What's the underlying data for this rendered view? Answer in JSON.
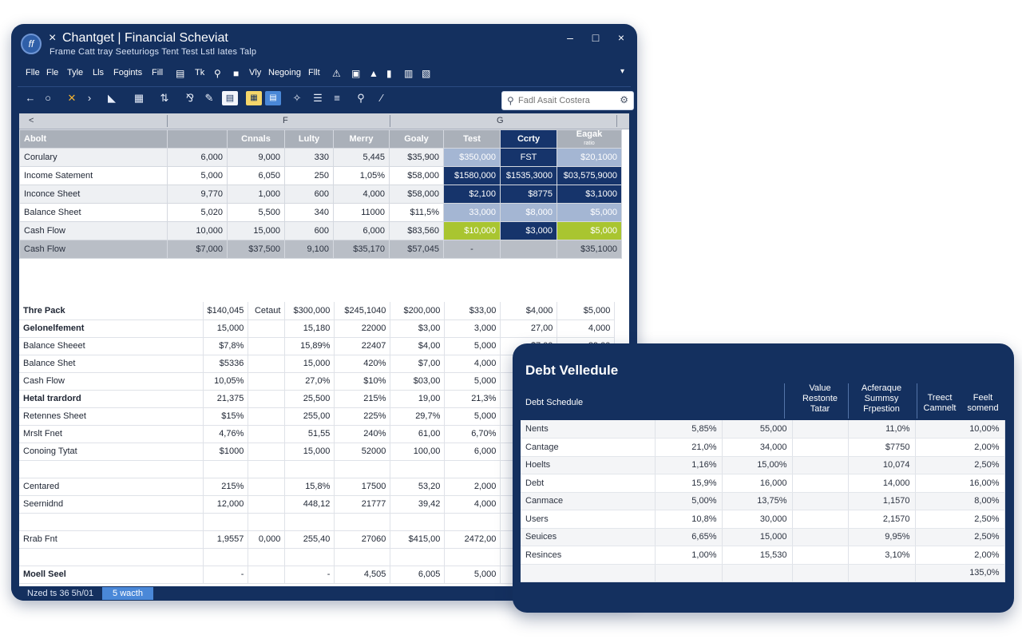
{
  "window": {
    "title": "Chantget | Financial Scheviat",
    "subtitle": "Frame Catt tray  Seeturiogs  Tent  Test  Lstl  Iates  Talp",
    "close_tab_icon": "×",
    "minimize_glyph": "–",
    "maximize_glyph": "□",
    "close_glyph": "×"
  },
  "menu": {
    "items": [
      "Flle",
      "Fle",
      "Tyle",
      "Lls",
      "Fogints",
      "Fill",
      "Tk",
      "Vly",
      "Negoing",
      "Fllt"
    ]
  },
  "toolbar": {
    "icons": [
      "back-arrow-icon",
      "refresh-icon",
      "cut-icon",
      "forward-icon",
      "paint-icon",
      "grid-icon",
      "sort-icon",
      "filter-icon",
      "pencil-icon",
      "note-icon",
      "image-icon",
      "chart-icon",
      "magic-icon",
      "list-icon",
      "lines-icon",
      "pin-icon",
      "wand-icon"
    ]
  },
  "search": {
    "placeholder": "Fadl Asait Costera"
  },
  "colheader": {
    "left": "<",
    "mid": "F",
    "right": "G"
  },
  "grid": {
    "headers": [
      "Abolt",
      "",
      "Cnnals",
      "Lulty",
      "Merry",
      "Goaly",
      "Test",
      "Ccrty",
      "Eagak"
    ],
    "header_sub": "ratio",
    "rows": [
      [
        "Corulary",
        "6,000",
        "9,000",
        "330",
        "5,445",
        "$35,900",
        "$350,000",
        "FST",
        "$20,1000"
      ],
      [
        "Income Satement",
        "5,000",
        "6,050",
        "250",
        "1,05%",
        "$58,000",
        "$1580,000",
        "$1535,3000",
        "$03,575,9000"
      ],
      [
        "Inconce Sheet",
        "9,770",
        "1,000",
        "600",
        "4,000",
        "$58,000",
        "$2,100",
        "$8775",
        "$3,1000"
      ],
      [
        "Balance Sheet",
        "5,020",
        "5,500",
        "340",
        "11000",
        "$11,5%",
        "33,000",
        "$8,000",
        "$5,000"
      ],
      [
        "Cash Flow",
        "10,000",
        "15,000",
        "600",
        "6,000",
        "$83,560",
        "$10,000",
        "$3,000",
        "$5,000"
      ]
    ],
    "total": [
      "Cash Flow",
      "$7,000",
      "$37,500",
      "9,100",
      "$35,170",
      "$57,045",
      "-",
      "",
      "$35,1000"
    ]
  },
  "lower": {
    "rows": [
      [
        "Thre Pack",
        "$140,045",
        "Cetaut",
        "$300,000",
        "$245,1040",
        "$200,000",
        "$33,00",
        "$4,000",
        "$5,000"
      ],
      [
        "Gelonelfement",
        "15,000",
        "",
        "15,180",
        "22000",
        "$3,00",
        "3,000",
        "27,00",
        "4,000"
      ],
      [
        "Balance Sheeet",
        "$7,8%",
        "",
        "15,89%",
        "22407",
        "$4,00",
        "5,000",
        "$7,00",
        "89,00"
      ],
      [
        "Balance Shet",
        "$5336",
        "",
        "15,000",
        "420%",
        "$7,00",
        "4,000",
        "",
        ""
      ],
      [
        "Cash Flow",
        "10,05%",
        "",
        "27,0%",
        "$10%",
        "$03,00",
        "5,000",
        "",
        ""
      ],
      [
        "Hetal trardord",
        "21,375",
        "",
        "25,500",
        "215%",
        "19,00",
        "21,3%",
        "",
        ""
      ],
      [
        "Retennes Sheet",
        "$15%",
        "",
        "255,00",
        "225%",
        "29,7%",
        "5,000",
        "",
        ""
      ],
      [
        "Mrslt Fnet",
        "4,76%",
        "",
        "51,55",
        "240%",
        "61,00",
        "6,70%",
        "",
        ""
      ],
      [
        "Conoing Tytat",
        "$1000",
        "",
        "15,000",
        "52000",
        "100,00",
        "6,000",
        "",
        ""
      ],
      [
        "",
        "",
        "",
        "",
        "",
        "",
        "",
        "",
        ""
      ],
      [
        "Centared",
        "215%",
        "",
        "15,8%",
        "17500",
        "53,20",
        "2,000",
        "",
        ""
      ],
      [
        "Seernidnd",
        "12,000",
        "",
        "448,12",
        "21777",
        "39,42",
        "4,000",
        "",
        ""
      ],
      [
        "",
        "",
        "",
        "",
        "",
        "",
        "",
        "",
        ""
      ],
      [
        "Rrab Fnt",
        "1,9557",
        "0,000",
        "255,40",
        "27060",
        "$415,00",
        "2472,00",
        "",
        ""
      ],
      [
        "",
        "",
        "",
        "",
        "",
        "",
        "",
        "",
        ""
      ],
      [
        "Moell Seel",
        "-",
        "",
        "-",
        "4,505",
        "6,005",
        "5,000",
        "",
        ""
      ]
    ]
  },
  "status": {
    "text": "Nzed ts 36 5h/01",
    "tab": "5 wacth"
  },
  "debt": {
    "title": "Debt Velledule",
    "subtitle": "Debt Schedule",
    "headers": [
      "Value\nRestonte\nTatar",
      "Acferaque\nSummsy\nFrpestion",
      "Treect\nCamnelt",
      "Feelt\nsomend"
    ],
    "rows": [
      [
        "Nents",
        "5,85%",
        "55,000",
        "",
        "11,0%",
        "10,00%"
      ],
      [
        "Cantage",
        "21,0%",
        "34,000",
        "",
        "$7750",
        "2,00%"
      ],
      [
        "Hoelts",
        "1,16%",
        "15,00%",
        "",
        "10,074",
        "2,50%"
      ],
      [
        "Debt",
        "15,9%",
        "16,000",
        "",
        "14,000",
        "16,00%"
      ],
      [
        "Canmace",
        "5,00%",
        "13,75%",
        "",
        "1,1570",
        "8,00%"
      ],
      [
        "Users",
        "10,8%",
        "30,000",
        "",
        "2,1570",
        "2,50%"
      ],
      [
        "Seuices",
        "6,65%",
        "15,000",
        "",
        "9,95%",
        "2,50%"
      ],
      [
        "Resinces",
        "1,00%",
        "15,530",
        "",
        "3,10%",
        "2,00%"
      ],
      [
        "",
        "",
        "",
        "",
        "",
        "135,0%"
      ]
    ]
  }
}
